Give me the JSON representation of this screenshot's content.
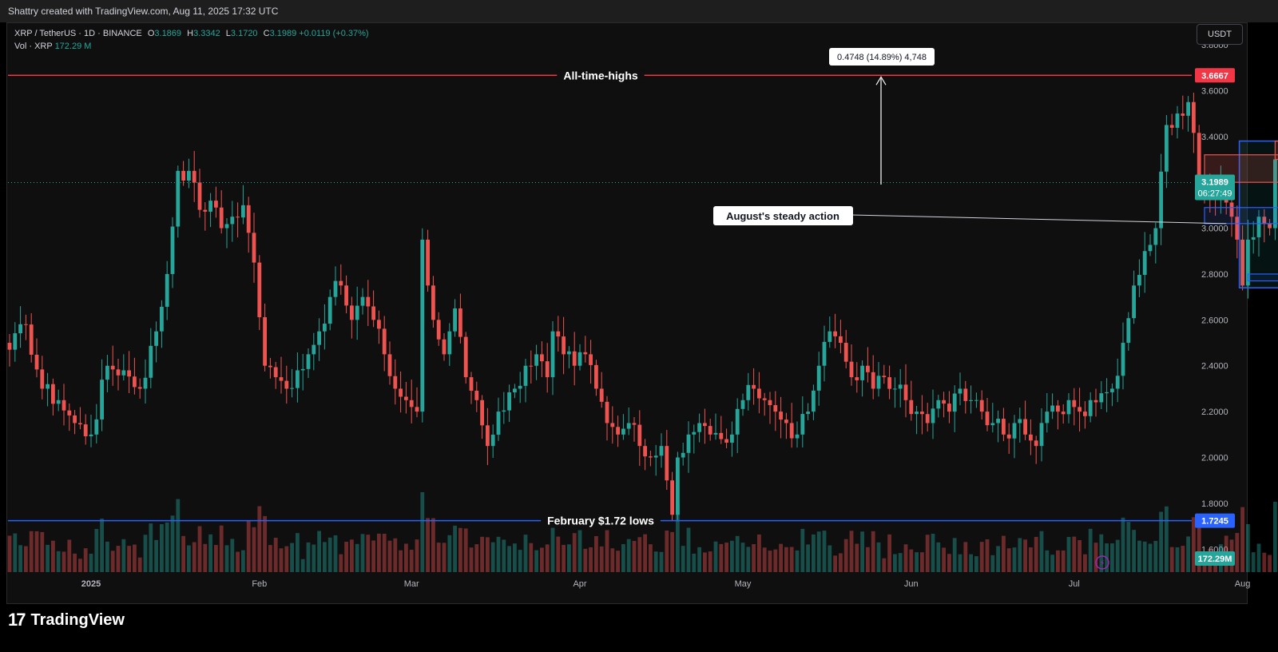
{
  "header": {
    "credit": "Shattry created with TradingView.com, Aug 11, 2025 17:32 UTC"
  },
  "legend": {
    "symbol": "XRP / TetherUS · 1D · BINANCE",
    "open_label": "O",
    "open": "3.1869",
    "high_label": "H",
    "high": "3.3342",
    "low_label": "L",
    "low": "3.1720",
    "close_label": "C",
    "close": "3.1989",
    "change": "+0.0119 (+0.37%)",
    "vol_label": "Vol · XRP",
    "vol_value": "172.29 M"
  },
  "currency": "USDT",
  "footer": {
    "logo_mark": "17",
    "logo_text": "TradingView"
  },
  "colors": {
    "up": "#26a69a",
    "down": "#ef5350",
    "ath_line": "#f23645",
    "low_line": "#2962ff",
    "background": "#0f0f0f"
  },
  "chart_data": {
    "type": "candlestick",
    "symbol": "XRP/USDT",
    "timeframe": "1D",
    "ylim": [
      1.5,
      3.8
    ],
    "y_ticks": [
      "3.8000",
      "3.6000",
      "3.4000",
      "3.2000",
      "3.0000",
      "2.8000",
      "2.6000",
      "2.4000",
      "2.2000",
      "2.0000",
      "1.8000",
      "1.6000"
    ],
    "y_tick_values": [
      3.8,
      3.6,
      3.4,
      3.2,
      3.0,
      2.8,
      2.6,
      2.4,
      2.2,
      2.0,
      1.8,
      1.6
    ],
    "x_ticks": [
      {
        "label": "2025",
        "day": 15
      },
      {
        "label": "Feb",
        "day": 46
      },
      {
        "label": "Mar",
        "day": 74
      },
      {
        "label": "Apr",
        "day": 105
      },
      {
        "label": "May",
        "day": 135
      },
      {
        "label": "Jun",
        "day": 166
      },
      {
        "label": "Jul",
        "day": 196
      },
      {
        "label": "Aug",
        "day": 227
      }
    ],
    "price_anchors": [
      [
        0,
        2.47
      ],
      [
        3,
        2.58
      ],
      [
        6,
        2.3
      ],
      [
        9,
        2.25
      ],
      [
        12,
        2.15
      ],
      [
        15,
        2.1
      ],
      [
        18,
        2.4
      ],
      [
        21,
        2.38
      ],
      [
        24,
        2.3
      ],
      [
        27,
        2.55
      ],
      [
        29,
        2.8
      ],
      [
        31,
        3.25
      ],
      [
        33,
        3.25
      ],
      [
        35,
        3.08
      ],
      [
        37,
        3.12
      ],
      [
        39,
        3.0
      ],
      [
        41,
        3.05
      ],
      [
        43,
        3.1
      ],
      [
        45,
        2.85
      ],
      [
        47,
        2.4
      ],
      [
        49,
        2.35
      ],
      [
        51,
        2.3
      ],
      [
        53,
        2.38
      ],
      [
        55,
        2.45
      ],
      [
        57,
        2.55
      ],
      [
        59,
        2.7
      ],
      [
        61,
        2.75
      ],
      [
        63,
        2.6
      ],
      [
        65,
        2.7
      ],
      [
        67,
        2.6
      ],
      [
        69,
        2.45
      ],
      [
        71,
        2.3
      ],
      [
        73,
        2.25
      ],
      [
        75,
        2.2
      ],
      [
        76,
        2.95
      ],
      [
        77,
        2.75
      ],
      [
        78,
        2.6
      ],
      [
        80,
        2.45
      ],
      [
        81,
        2.55
      ],
      [
        82,
        2.65
      ],
      [
        84,
        2.35
      ],
      [
        86,
        2.25
      ],
      [
        88,
        2.05
      ],
      [
        90,
        2.2
      ],
      [
        93,
        2.3
      ],
      [
        95,
        2.4
      ],
      [
        97,
        2.45
      ],
      [
        99,
        2.35
      ],
      [
        100,
        2.55
      ],
      [
        102,
        2.45
      ],
      [
        104,
        2.4
      ],
      [
        106,
        2.45
      ],
      [
        108,
        2.3
      ],
      [
        110,
        2.15
      ],
      [
        112,
        2.1
      ],
      [
        114,
        2.15
      ],
      [
        116,
        2.05
      ],
      [
        118,
        2.0
      ],
      [
        120,
        2.05
      ],
      [
        121,
        1.9
      ],
      [
        122,
        1.75
      ],
      [
        123,
        2.0
      ],
      [
        125,
        2.1
      ],
      [
        127,
        2.15
      ],
      [
        129,
        2.1
      ],
      [
        131,
        2.08
      ],
      [
        133,
        2.1
      ],
      [
        135,
        2.25
      ],
      [
        137,
        2.3
      ],
      [
        139,
        2.25
      ],
      [
        141,
        2.2
      ],
      [
        143,
        2.15
      ],
      [
        145,
        2.1
      ],
      [
        147,
        2.2
      ],
      [
        149,
        2.4
      ],
      [
        151,
        2.55
      ],
      [
        153,
        2.5
      ],
      [
        155,
        2.35
      ],
      [
        157,
        2.4
      ],
      [
        159,
        2.3
      ],
      [
        161,
        2.35
      ],
      [
        163,
        2.3
      ],
      [
        165,
        2.25
      ],
      [
        167,
        2.2
      ],
      [
        169,
        2.15
      ],
      [
        171,
        2.25
      ],
      [
        173,
        2.2
      ],
      [
        175,
        2.3
      ],
      [
        177,
        2.25
      ],
      [
        179,
        2.2
      ],
      [
        181,
        2.15
      ],
      [
        183,
        2.1
      ],
      [
        185,
        2.15
      ],
      [
        187,
        2.1
      ],
      [
        189,
        2.05
      ],
      [
        191,
        2.2
      ],
      [
        193,
        2.2
      ],
      [
        195,
        2.25
      ],
      [
        197,
        2.2
      ],
      [
        199,
        2.25
      ],
      [
        201,
        2.28
      ],
      [
        203,
        2.3
      ],
      [
        205,
        2.5
      ],
      [
        207,
        2.75
      ],
      [
        209,
        2.9
      ],
      [
        211,
        3.0
      ],
      [
        213,
        3.45
      ],
      [
        215,
        3.5
      ],
      [
        217,
        3.55
      ],
      [
        219,
        3.2
      ],
      [
        221,
        3.15
      ],
      [
        223,
        3.2
      ],
      [
        225,
        3.05
      ],
      [
        226,
        2.95
      ],
      [
        227,
        2.75
      ],
      [
        228,
        2.95
      ],
      [
        230,
        3.05
      ],
      [
        232,
        3.0
      ],
      [
        233,
        3.3
      ],
      [
        235,
        3.35
      ],
      [
        236,
        3.25
      ],
      [
        237,
        3.1989
      ]
    ],
    "volume_max_M": 1000,
    "last_volume_M": 172.29,
    "horizontal_lines": [
      {
        "name": "All-time-highs",
        "price": 3.6667,
        "label": "3.6667"
      },
      {
        "name": "February $1.72 lows",
        "price": 1.7245,
        "label": "1.7245"
      }
    ],
    "current_price": "3.1989",
    "countdown": "06:27:49",
    "volume_badge": "172.29M",
    "annotations": [
      {
        "text": "All-time-highs"
      },
      {
        "text": "February $1.72 lows"
      },
      {
        "text": "August's steady action"
      },
      {
        "text": "0.4748 (14.89%) 4,748"
      }
    ],
    "measure": {
      "from_price": 3.19,
      "to_price": 3.6667,
      "day": 221
    },
    "steady_line_price": 3.02,
    "august_zone": {
      "x1_day": 227,
      "x2_day": 236,
      "y_top": 3.38,
      "y_bottom": 2.74
    },
    "august_boxes": [
      {
        "x1_day": 220,
        "x2_day": 235,
        "y_top": 3.32,
        "y_bottom": 3.2,
        "color": "#ef5350"
      },
      {
        "x1_day": 233,
        "x2_day": 236,
        "y_top": 3.38,
        "y_bottom": 3.3,
        "color": "#ef5350"
      },
      {
        "x1_day": 220,
        "x2_day": 236,
        "y_top": 3.09,
        "y_bottom": 3.02,
        "color": "#2962ff"
      },
      {
        "x1_day": 228,
        "x2_day": 236,
        "y_top": 2.8,
        "y_bottom": 2.77,
        "color": "#2962ff"
      }
    ]
  }
}
